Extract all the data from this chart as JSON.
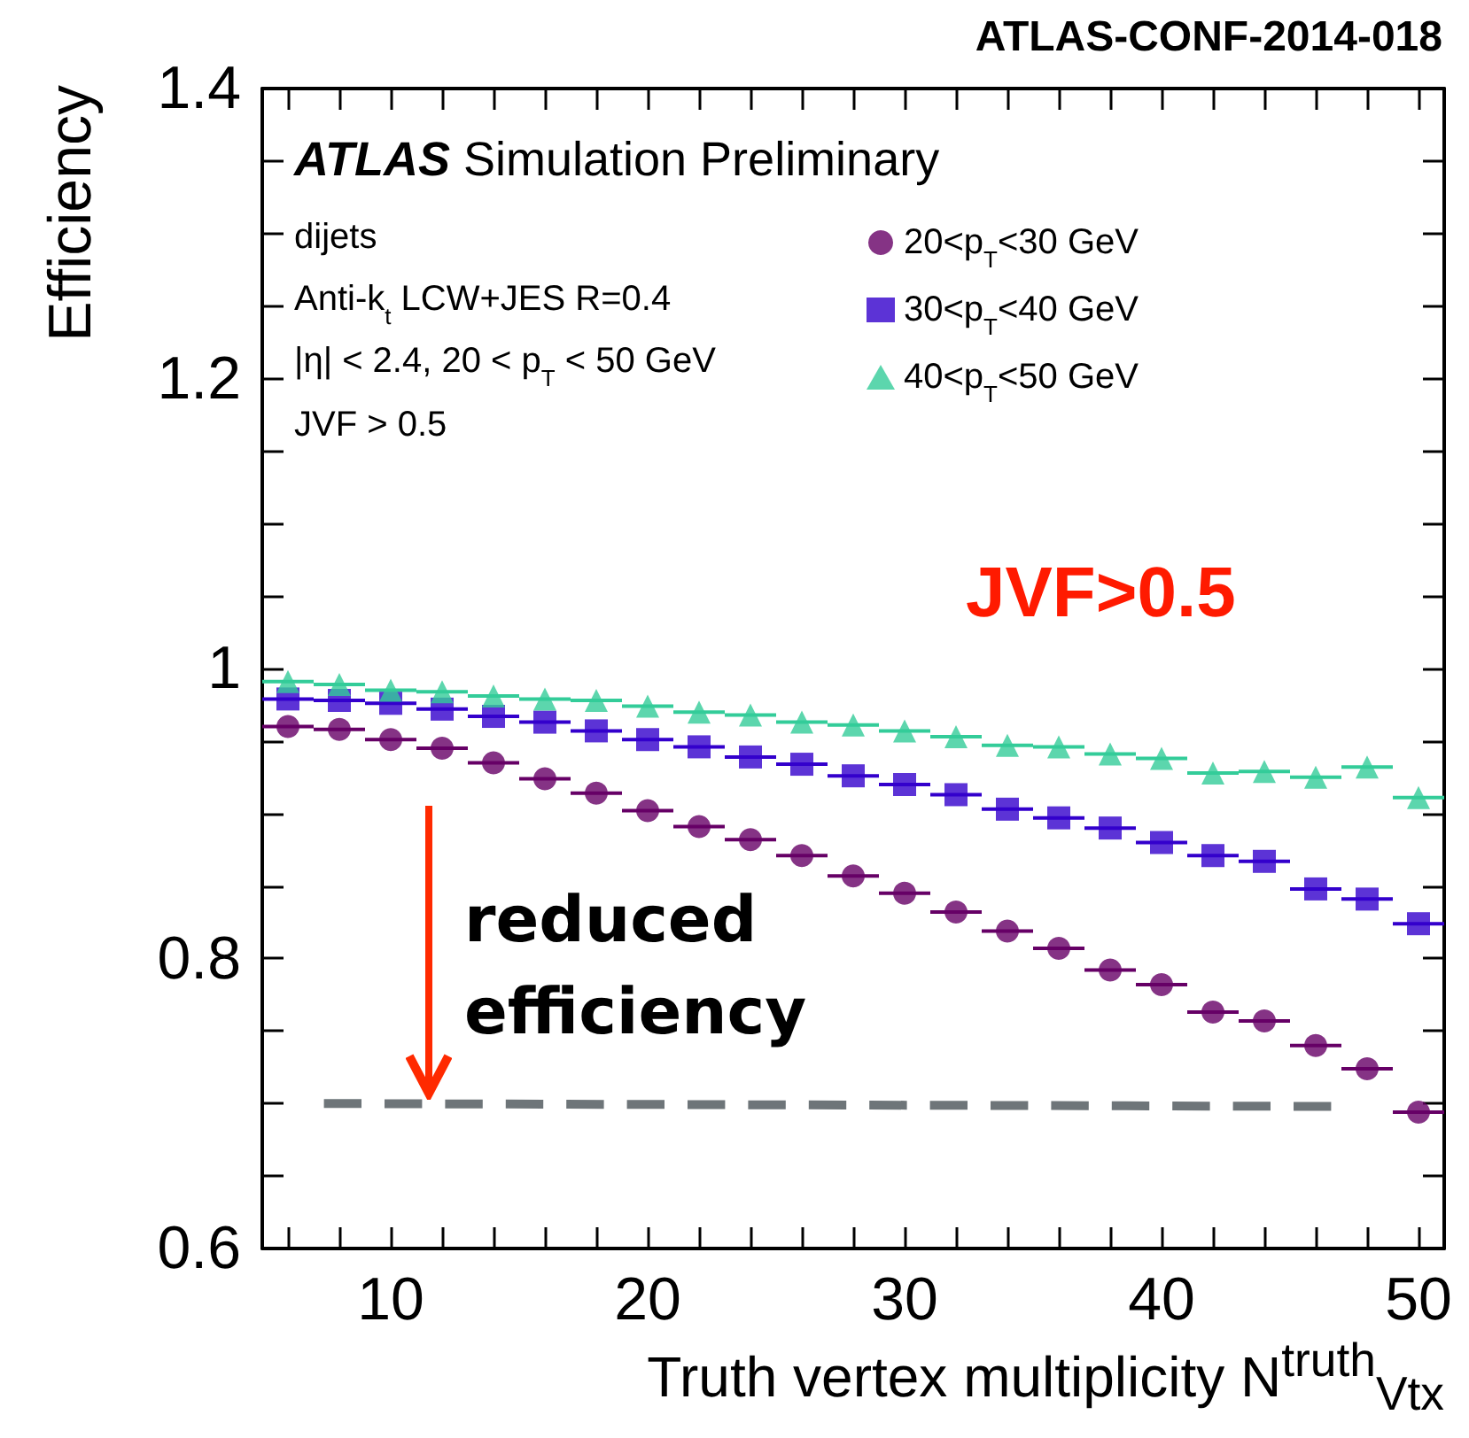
{
  "chart_data": {
    "type": "scatter",
    "title": "ATLAS-CONF-2014-018",
    "subtitle": "ATLAS Simulation Preliminary",
    "xlabel": "Truth vertex multiplicity N$^{truth}$$_{Vtx}$",
    "ylabel": "Efficiency",
    "x": [
      6,
      8,
      10,
      12,
      14,
      16,
      18,
      20,
      22,
      24,
      26,
      28,
      30,
      32,
      34,
      36,
      38,
      40,
      42,
      44,
      46,
      48,
      50
    ],
    "series": [
      {
        "name": "20<p$_{T}$<30 GeV",
        "color": "#660066",
        "marker": "circle",
        "values": [
          0.96,
          0.958,
          0.951,
          0.945,
          0.935,
          0.924,
          0.914,
          0.902,
          0.891,
          0.882,
          0.871,
          0.857,
          0.845,
          0.832,
          0.819,
          0.807,
          0.792,
          0.782,
          0.763,
          0.757,
          0.74,
          0.724,
          0.694
        ],
        "xerrors": [
          1,
          1,
          1,
          1,
          1,
          1,
          1,
          1,
          1,
          1,
          1,
          1,
          1,
          1,
          1,
          1,
          1,
          1,
          1,
          1,
          1,
          1,
          1
        ]
      },
      {
        "name": "30<p$_{T}$<40 GeV",
        "color": "#3300cc",
        "marker": "square",
        "values": [
          0.979,
          0.978,
          0.976,
          0.972,
          0.967,
          0.963,
          0.957,
          0.951,
          0.946,
          0.939,
          0.934,
          0.926,
          0.92,
          0.913,
          0.903,
          0.897,
          0.89,
          0.88,
          0.871,
          0.867,
          0.848,
          0.841,
          0.824
        ],
        "xerrors": [
          1,
          1,
          1,
          1,
          1,
          1,
          1,
          1,
          1,
          1,
          1,
          1,
          1,
          1,
          1,
          1,
          1,
          1,
          1,
          1,
          1,
          1,
          1
        ]
      },
      {
        "name": "40<p$_{T}$<50 GeV",
        "color": "#33cc99",
        "marker": "triangle",
        "values": [
          0.991,
          0.989,
          0.985,
          0.984,
          0.981,
          0.979,
          0.978,
          0.974,
          0.97,
          0.968,
          0.963,
          0.961,
          0.957,
          0.953,
          0.947,
          0.946,
          0.941,
          0.938,
          0.928,
          0.929,
          0.925,
          0.932,
          0.911
        ],
        "xerrors": [
          1,
          1,
          1,
          1,
          1,
          1,
          1,
          1,
          1,
          1,
          1,
          1,
          1,
          1,
          1,
          1,
          1,
          1,
          1,
          1,
          1,
          1,
          1
        ]
      },
      {
        "type": "line",
        "color": "#6e7579",
        "marker": "none",
        "line_style": "dashed",
        "x": [
          7.4,
          46.6
        ],
        "values": [
          0.7,
          0.698
        ]
      }
    ],
    "xlim": [
      5,
      51
    ],
    "xticks": [
      {
        "value": 6,
        "label": null
      },
      {
        "value": 8,
        "label": null
      },
      10,
      {
        "value": 12,
        "label": null
      },
      {
        "value": 14,
        "label": null
      },
      {
        "value": 16,
        "label": null
      },
      {
        "value": 18,
        "label": null
      },
      20,
      {
        "value": 22,
        "label": null
      },
      {
        "value": 24,
        "label": null
      },
      {
        "value": 26,
        "label": null
      },
      {
        "value": 28,
        "label": null
      },
      30,
      {
        "value": 32,
        "label": null
      },
      {
        "value": 34,
        "label": null
      },
      {
        "value": 36,
        "label": null
      },
      {
        "value": 38,
        "label": null
      },
      40,
      {
        "value": 42,
        "label": null
      },
      {
        "value": 44,
        "label": null
      },
      {
        "value": 46,
        "label": null
      },
      {
        "value": 48,
        "label": null
      },
      50
    ],
    "ylim": [
      0.6,
      1.4
    ],
    "yticks": [
      0.6,
      {
        "value": 0.65,
        "label": null
      },
      {
        "value": 0.7,
        "label": null
      },
      {
        "value": 0.75,
        "label": null
      },
      0.8,
      {
        "value": 0.85,
        "label": null
      },
      {
        "value": 0.9,
        "label": null
      },
      {
        "value": 0.95,
        "label": null
      },
      1,
      {
        "value": 1.05,
        "label": null
      },
      {
        "value": 1.1,
        "label": null
      },
      {
        "value": 1.15,
        "label": null
      },
      1.2,
      {
        "value": 1.25,
        "label": null
      },
      {
        "value": 1.3,
        "label": null
      },
      {
        "value": 1.35,
        "label": null
      },
      1.4
    ],
    "legend": "top right",
    "annotations": [
      "dijets",
      "Anti-k$_{t}$ LCW+JES R=0.4",
      "|η| < 2.4, 20 < p$_{T}$ < 50 GeV",
      "JVF > 0.5",
      "JVF>0.5",
      "reduced efficiency"
    ]
  }
}
